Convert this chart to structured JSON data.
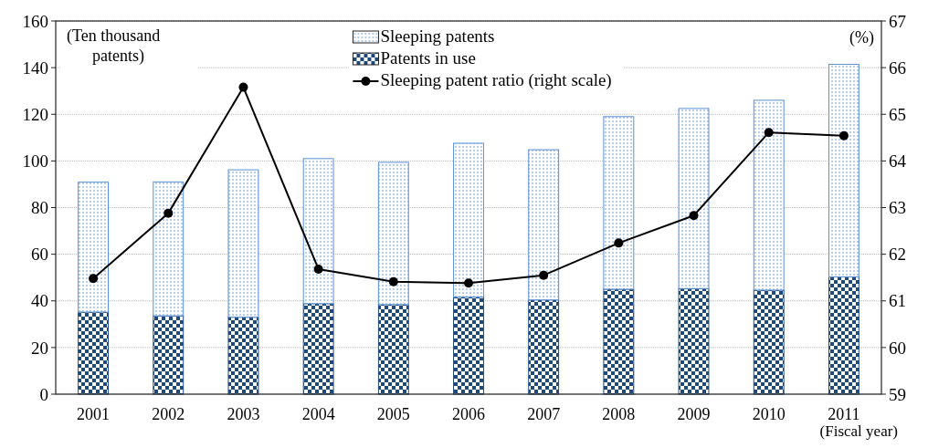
{
  "chart_data": {
    "type": "bar",
    "stacked": true,
    "categories": [
      "2001",
      "2002",
      "2003",
      "2004",
      "2005",
      "2006",
      "2007",
      "2008",
      "2009",
      "2010",
      "2011"
    ],
    "series": [
      {
        "name": "Patents in use",
        "color": "#1f497d",
        "values": [
          35.2,
          33.6,
          33,
          38.8,
          38.4,
          41.6,
          40.4,
          45,
          45.3,
          44.6,
          50.3
        ]
      },
      {
        "name": "Sleeping patents",
        "color": "#5b8fd6",
        "values": [
          55.7,
          57.4,
          63.2,
          62.2,
          61,
          66,
          64.4,
          74,
          77.2,
          81.4,
          91.1
        ]
      },
      {
        "name": "Sleeping patent ratio (right scale)",
        "type": "line",
        "axis": "y2",
        "color": "#000000",
        "values": [
          61.48,
          62.88,
          65.58,
          61.68,
          61.41,
          61.38,
          61.55,
          62.24,
          62.83,
          64.61,
          64.54
        ]
      }
    ],
    "ylabel": "(Ten thousand patents)",
    "y2label": "(%)",
    "xlabel": "(Fiscal year)",
    "ylim": [
      0,
      160
    ],
    "yticks": [
      0,
      20,
      40,
      60,
      80,
      100,
      120,
      140,
      160
    ],
    "y2lim": [
      59,
      67
    ],
    "y2ticks": [
      59,
      60,
      61,
      62,
      63,
      64,
      65,
      66,
      67
    ],
    "grid": "y",
    "legend": "top",
    "marker": "circle"
  }
}
